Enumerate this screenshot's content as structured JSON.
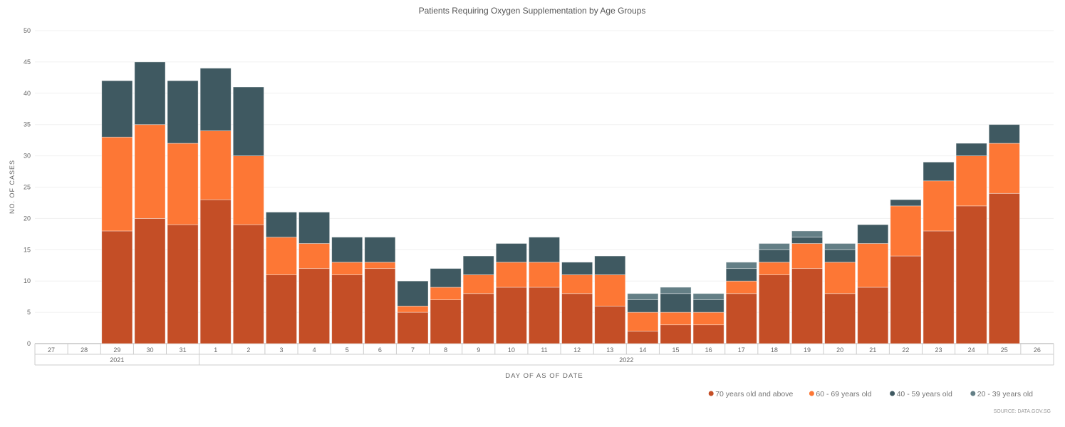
{
  "chart_data": {
    "type": "bar",
    "stacked": true,
    "title": "Patients Requiring Oxygen Supplementation by Age Groups",
    "xlabel": "DAY OF AS OF DATE",
    "ylabel": "NO. OF CASES",
    "ylim": [
      0,
      50
    ],
    "yticks": [
      0,
      5,
      10,
      15,
      20,
      25,
      30,
      35,
      40,
      45,
      50
    ],
    "categories": [
      "27",
      "28",
      "29",
      "30",
      "31",
      "1",
      "2",
      "3",
      "4",
      "5",
      "6",
      "7",
      "8",
      "9",
      "10",
      "11",
      "12",
      "13",
      "14",
      "15",
      "16",
      "17",
      "18",
      "19",
      "20",
      "21",
      "22",
      "23",
      "24",
      "25",
      "26"
    ],
    "year_groups": [
      {
        "label": "2021",
        "count": 5
      },
      {
        "label": "2022",
        "count": 26
      }
    ],
    "series": [
      {
        "name": "70 years old and above",
        "color": "#c44e26",
        "values": [
          0,
          0,
          18,
          20,
          19,
          23,
          19,
          11,
          12,
          11,
          12,
          5,
          7,
          8,
          9,
          9,
          8,
          6,
          2,
          3,
          3,
          8,
          11,
          12,
          8,
          9,
          14,
          18,
          22,
          24,
          0
        ]
      },
      {
        "name": "60 - 69 years old",
        "color": "#fd7735",
        "values": [
          0,
          0,
          15,
          15,
          13,
          11,
          11,
          6,
          4,
          2,
          1,
          1,
          2,
          3,
          4,
          4,
          3,
          5,
          3,
          2,
          2,
          2,
          2,
          4,
          5,
          7,
          8,
          8,
          8,
          8,
          0
        ]
      },
      {
        "name": "40 - 59 years old",
        "color": "#3f5961",
        "values": [
          0,
          0,
          9,
          10,
          10,
          10,
          11,
          4,
          5,
          4,
          4,
          4,
          3,
          3,
          3,
          4,
          2,
          3,
          2,
          3,
          2,
          2,
          2,
          1,
          2,
          3,
          1,
          3,
          2,
          3,
          0
        ]
      },
      {
        "name": "20 - 39 years old",
        "color": "#647f86",
        "values": [
          0,
          0,
          0,
          0,
          0,
          0,
          0,
          0,
          0,
          0,
          0,
          0,
          0,
          0,
          0,
          0,
          0,
          0,
          1,
          1,
          1,
          1,
          1,
          1,
          1,
          0,
          0,
          0,
          0,
          0,
          0
        ]
      }
    ],
    "legend_position": "bottom-right",
    "grid": true
  },
  "source": "SOURCE: DATA.GOV.SG"
}
